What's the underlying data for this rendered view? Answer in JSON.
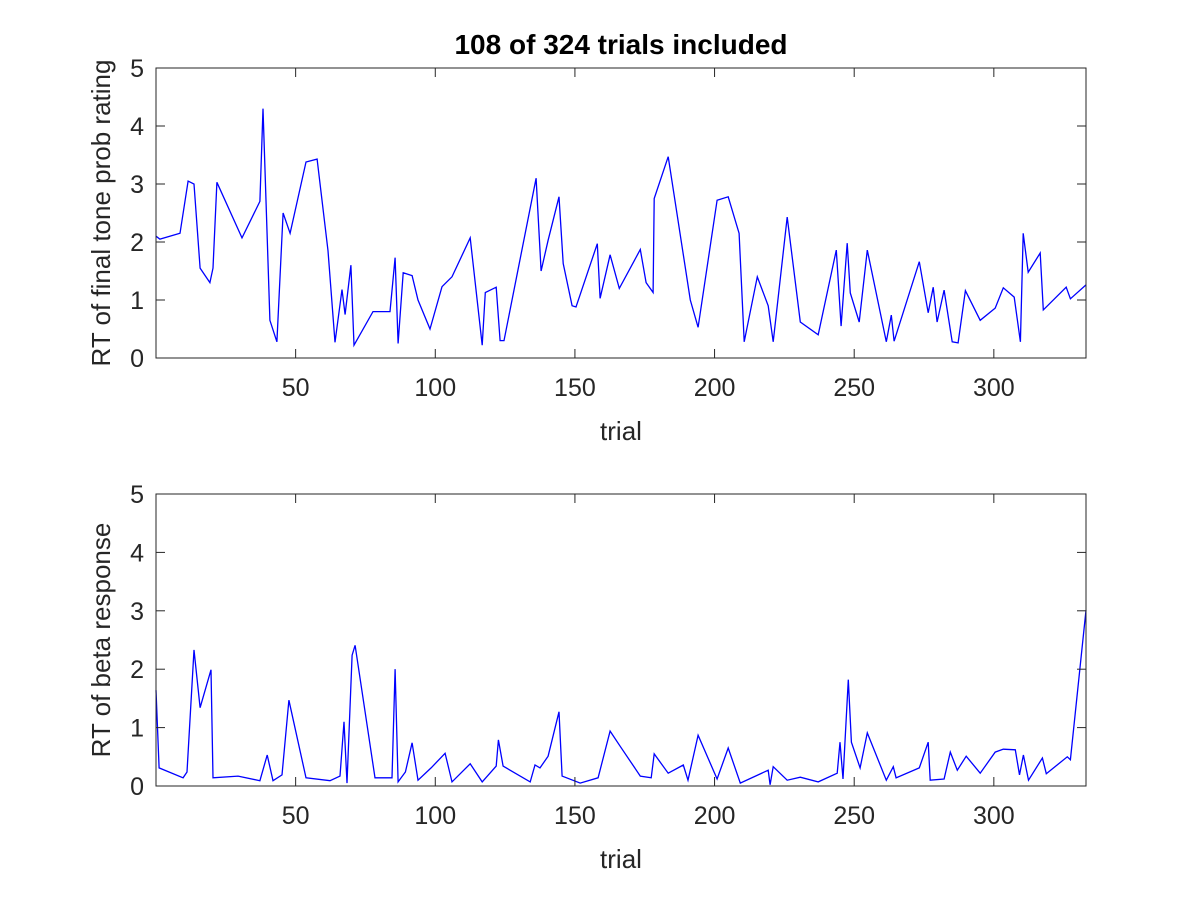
{
  "chart_data": [
    {
      "type": "line",
      "title": "108 of 324 trials included",
      "xlabel": "trial",
      "ylabel": "RT of final tone prob rating",
      "color": "#0000ff",
      "x": [
        0,
        1.4,
        8.6,
        11.5,
        13.6,
        15.8,
        19.3,
        20.4,
        21.8,
        30.8,
        37.2,
        38.3,
        40.8,
        43.3,
        45.5,
        48,
        53.7,
        57.7,
        61.6,
        64.1,
        66.6,
        67.7,
        69.8,
        70.9,
        77.7,
        83.8,
        85.6,
        86.7,
        88.5,
        91.7,
        93.8,
        98.1,
        102.4,
        106,
        112.5,
        116.8,
        117.9,
        121.8,
        123.2,
        124.6,
        136.1,
        137.9,
        140.4,
        144.3,
        145.8,
        149,
        150.4,
        158,
        159,
        162.6,
        165.9,
        173.4,
        175.5,
        178,
        178.4,
        183.4,
        191.3,
        194.1,
        200.9,
        204.9,
        208.8,
        210.6,
        215.3,
        219.2,
        221,
        226,
        230.7,
        237.1,
        243.6,
        245.3,
        247.5,
        248.6,
        251.8,
        254.7,
        261.5,
        263.3,
        264.3,
        273.3,
        276.5,
        278.3,
        279.7,
        282.2,
        285.1,
        287.2,
        289.8,
        295.1,
        300.5,
        303.4,
        307.3,
        309.5,
        310.5,
        312.3,
        316.6,
        317.7,
        325.9,
        327.4,
        333
      ],
      "values": [
        2.1,
        2.05,
        2.15,
        3.05,
        3.0,
        1.55,
        1.3,
        1.55,
        3.03,
        2.07,
        2.7,
        4.3,
        0.65,
        0.28,
        2.5,
        2.15,
        3.38,
        3.43,
        1.85,
        0.27,
        1.18,
        0.75,
        1.6,
        0.22,
        0.8,
        0.8,
        1.73,
        0.25,
        1.47,
        1.42,
        1.0,
        0.5,
        1.23,
        1.4,
        2.07,
        0.22,
        1.13,
        1.22,
        0.3,
        0.3,
        3.1,
        1.5,
        2.03,
        2.78,
        1.63,
        0.9,
        0.88,
        1.97,
        1.03,
        1.78,
        1.2,
        1.87,
        1.3,
        1.13,
        2.75,
        3.47,
        1.0,
        0.53,
        2.72,
        2.78,
        2.15,
        0.28,
        1.4,
        0.9,
        0.28,
        2.43,
        0.62,
        0.4,
        1.86,
        0.55,
        1.98,
        1.12,
        0.62,
        1.86,
        0.28,
        0.74,
        0.29,
        1.66,
        0.78,
        1.22,
        0.62,
        1.17,
        0.28,
        0.26,
        1.16,
        0.65,
        0.86,
        1.21,
        1.05,
        0.28,
        2.15,
        1.48,
        1.81,
        0.83,
        1.22,
        1.02,
        1.26
      ],
      "xlim": [
        0,
        333
      ],
      "ylim": [
        0,
        5
      ],
      "xticks": [
        50,
        100,
        150,
        200,
        250,
        300
      ],
      "yticks": [
        0,
        1,
        2,
        3,
        4,
        5
      ]
    },
    {
      "type": "line",
      "xlabel": "trial",
      "ylabel": "RT of beta response",
      "color": "#0000ff",
      "x": [
        0,
        1.1,
        9.7,
        11.1,
        13.6,
        15.8,
        19.7,
        20.4,
        29.4,
        37.2,
        39.8,
        41.9,
        45.1,
        47.6,
        53.7,
        62.3,
        65.9,
        67.3,
        68.4,
        70.2,
        71.3,
        78.4,
        84.5,
        85.6,
        86.7,
        89.3,
        91.7,
        93.8,
        98.5,
        103.5,
        106,
        112.5,
        116.8,
        121.8,
        122.6,
        124.3,
        134,
        135.7,
        137.5,
        140.4,
        144.3,
        145.4,
        151.9,
        158.3,
        162.6,
        166.2,
        173.4,
        177.3,
        178.4,
        183.4,
        188.8,
        190.5,
        194.1,
        200.9,
        204.9,
        209.2,
        219.2,
        219.9,
        221,
        226,
        230.7,
        237.1,
        243.9,
        244.9,
        246,
        247.9,
        249,
        252.1,
        254.7,
        261.5,
        264,
        265,
        273.3,
        276.5,
        277.2,
        282.2,
        284.4,
        286.9,
        290.1,
        295.1,
        300.5,
        303.4,
        307.7,
        309.2,
        310.6,
        312.4,
        317.4,
        318.8,
        326.3,
        327.4,
        333
      ],
      "values": [
        1.64,
        0.31,
        0.14,
        0.24,
        2.33,
        1.34,
        1.99,
        0.14,
        0.17,
        0.09,
        0.53,
        0.09,
        0.19,
        1.47,
        0.14,
        0.09,
        0.17,
        1.1,
        0.05,
        2.24,
        2.41,
        0.14,
        0.14,
        2.0,
        0.07,
        0.24,
        0.74,
        0.1,
        0.31,
        0.56,
        0.07,
        0.38,
        0.07,
        0.34,
        0.79,
        0.34,
        0.07,
        0.36,
        0.31,
        0.51,
        1.27,
        0.17,
        0.05,
        0.14,
        0.94,
        0.68,
        0.17,
        0.14,
        0.55,
        0.22,
        0.36,
        0.1,
        0.87,
        0.12,
        0.65,
        0.05,
        0.27,
        0.02,
        0.33,
        0.1,
        0.15,
        0.07,
        0.22,
        0.75,
        0.12,
        1.82,
        0.75,
        0.31,
        0.91,
        0.1,
        0.33,
        0.14,
        0.31,
        0.75,
        0.1,
        0.12,
        0.58,
        0.27,
        0.51,
        0.22,
        0.58,
        0.63,
        0.62,
        0.19,
        0.53,
        0.1,
        0.48,
        0.21,
        0.5,
        0.45,
        3.01
      ],
      "xlim": [
        0,
        333
      ],
      "ylim": [
        0,
        5
      ],
      "xticks": [
        50,
        100,
        150,
        200,
        250,
        300
      ],
      "yticks": [
        0,
        1,
        2,
        3,
        4,
        5
      ]
    }
  ]
}
